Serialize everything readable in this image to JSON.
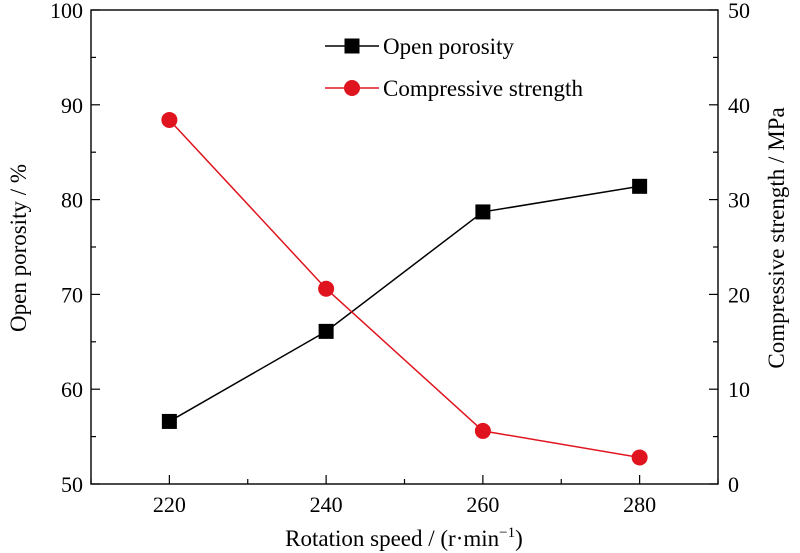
{
  "chart_data": {
    "type": "line",
    "title": "",
    "x": [
      220,
      240,
      260,
      280
    ],
    "xlabel": "Rotation speed / (r·min",
    "xlabel_superscript": "−1",
    "xlabel_suffix": ")",
    "xlim": [
      210,
      290
    ],
    "xticks": [
      220,
      240,
      260,
      280
    ],
    "ylabel_left": "Open porosity / %",
    "ylim_left": [
      50,
      100
    ],
    "yticks_left": [
      50,
      60,
      70,
      80,
      90,
      100
    ],
    "ylabel_right": "Compressive strength / MPa",
    "ylim_right": [
      0,
      50
    ],
    "yticks_right": [
      0,
      10,
      20,
      30,
      40,
      50
    ],
    "series": [
      {
        "name": "Open porosity",
        "axis": "left",
        "marker": "square",
        "color": "#000000",
        "values": [
          56.6,
          66.1,
          78.7,
          81.4
        ]
      },
      {
        "name": "Compressive strength",
        "axis": "right",
        "marker": "circle",
        "color": "#e0141e",
        "values": [
          38.4,
          20.6,
          5.6,
          2.8
        ]
      }
    ],
    "legend_position": "top-center",
    "grid": false
  }
}
